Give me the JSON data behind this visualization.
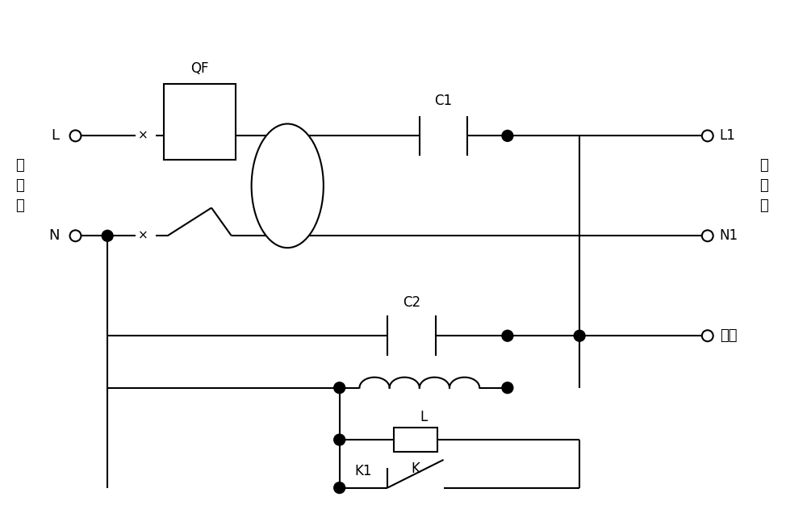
{
  "bg_color": "#ffffff",
  "line_color": "#000000",
  "line_width": 1.5,
  "fig_width": 10.0,
  "fig_height": 6.52,
  "labels": {
    "L_input": "L",
    "N_input": "N",
    "L1_output": "L1",
    "N1_output": "N1",
    "ground_output": "地线",
    "QF": "QF",
    "C1": "C1",
    "C2": "C2",
    "L_inductor": "L",
    "K": "K",
    "K1": "K1",
    "jin_xian_duan": "进\n线\n端",
    "chu_xian_duan": "出\n线\n端"
  }
}
